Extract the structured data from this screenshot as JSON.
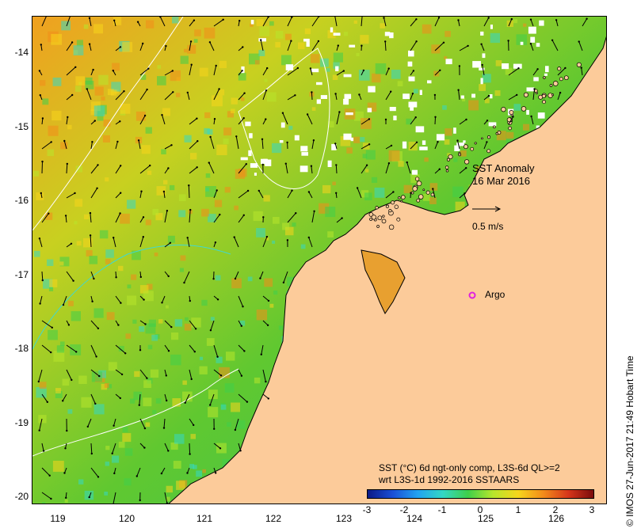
{
  "map": {
    "x_ticks": [
      "119",
      "120",
      "121",
      "122",
      "123",
      "124",
      "125",
      "126"
    ],
    "y_ticks": [
      "-14",
      "-15",
      "-16",
      "-17",
      "-18",
      "-19",
      "-20"
    ],
    "lon_range": [
      118.65,
      126.75
    ],
    "lat_range": [
      -13.55,
      -20.15
    ],
    "land_color": "#fccb9a",
    "anomaly_colors": [
      "#0b1a86",
      "#1a4fd6",
      "#22a3f0",
      "#34d8c4",
      "#3fcf4a",
      "#b8e62c",
      "#f7d51c",
      "#f28c1a",
      "#d6361a",
      "#7a0c0c"
    ]
  },
  "title": {
    "line1": "SST Anomaly",
    "line2": "16 Mar 2016"
  },
  "vector_scale": {
    "label": "0.5 m/s"
  },
  "argo": {
    "label": "Argo",
    "color": "#e020e0"
  },
  "caption": {
    "line1": "SST (°C) 6d ngt-only comp, L3S-6d QL>=2",
    "line2": "wrt L3S-1d 1992-2016 SSTAARS"
  },
  "colorbar": {
    "labels": [
      "-3",
      "-2",
      "-1",
      "0",
      "1",
      "2",
      "3"
    ]
  },
  "credit": "© IMOS 27-Jun-2017 21:49 Hobart Time"
}
